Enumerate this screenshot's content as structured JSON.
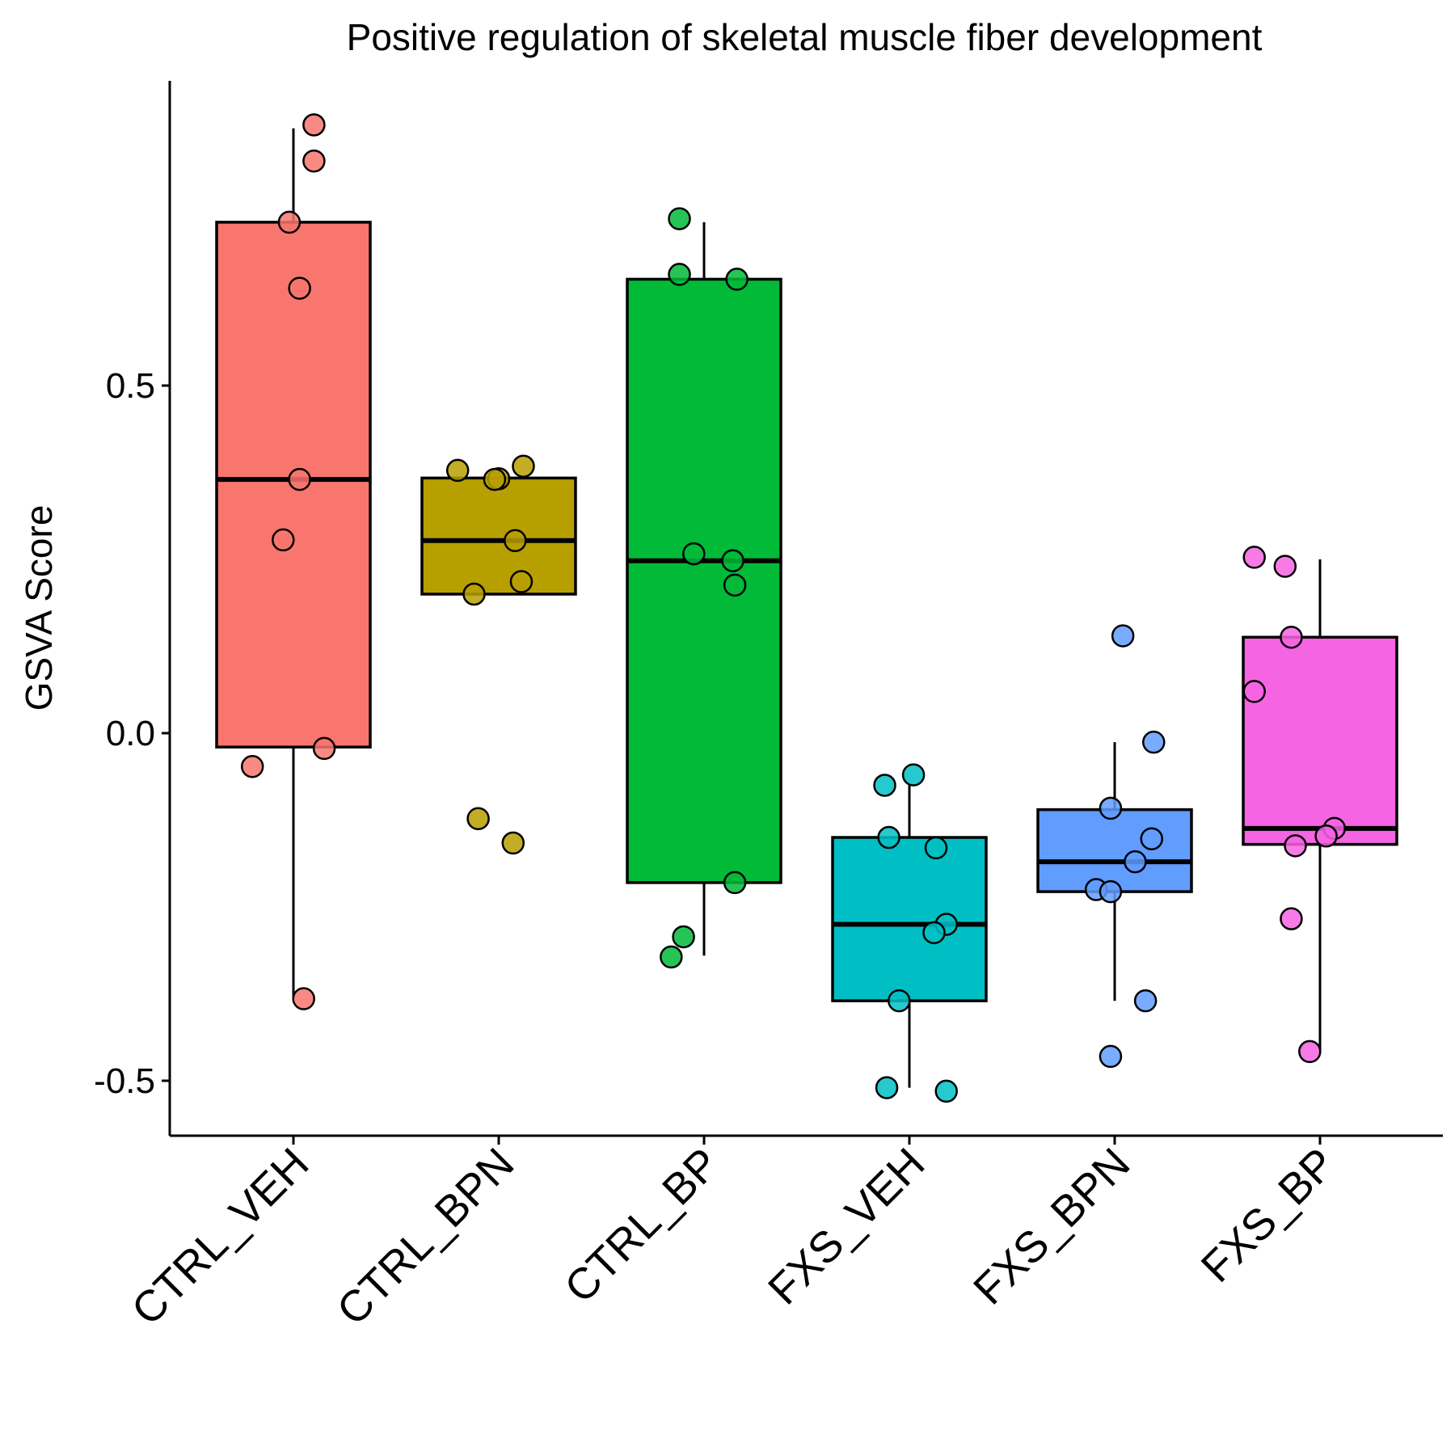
{
  "chart_data": {
    "type": "boxplot",
    "title": "Positive regulation of skeletal muscle fiber development",
    "xlabel": "",
    "ylabel": "GSVA Score",
    "ylim": [
      -0.58,
      0.94
    ],
    "yticks": [
      -0.5,
      0.0,
      0.5
    ],
    "ytick_labels": [
      "-0.5",
      "0.0",
      "0.5"
    ],
    "grid": false,
    "legend": "none",
    "categories": [
      "CTRL_VEH",
      "CTRL_BPN",
      "CTRL_BP",
      "FXS_VEH",
      "FXS_BPN",
      "FXS_BP"
    ],
    "colors": [
      "#F8766D",
      "#B79F00",
      "#00BA38",
      "#00BFC4",
      "#619CFF",
      "#F564E3"
    ],
    "boxes": [
      {
        "category": "CTRL_VEH",
        "whisker_low": -0.38,
        "q1": -0.02,
        "median": 0.365,
        "q3": 0.735,
        "whisker_high": 0.87
      },
      {
        "category": "CTRL_BPN",
        "whisker_low": 0.2,
        "q1": 0.2,
        "median": 0.277,
        "q3": 0.367,
        "whisker_high": 0.367
      },
      {
        "category": "CTRL_BP",
        "whisker_low": -0.32,
        "q1": -0.215,
        "median": 0.248,
        "q3": 0.653,
        "whisker_high": 0.735
      },
      {
        "category": "FXS_VEH",
        "whisker_low": -0.51,
        "q1": -0.385,
        "median": -0.275,
        "q3": -0.15,
        "whisker_high": -0.075
      },
      {
        "category": "FXS_BPN",
        "whisker_low": -0.385,
        "q1": -0.228,
        "median": -0.185,
        "q3": -0.11,
        "whisker_high": -0.013
      },
      {
        "category": "FXS_BP",
        "whisker_low": -0.46,
        "q1": -0.16,
        "median": -0.137,
        "q3": 0.138,
        "whisker_high": 0.25
      }
    ],
    "points": [
      {
        "category": "CTRL_VEH",
        "values": [
          0.875,
          0.823,
          0.735,
          0.64,
          0.365,
          0.278,
          -0.022,
          -0.048,
          -0.382
        ]
      },
      {
        "category": "CTRL_BPN",
        "values": [
          0.384,
          0.378,
          0.366,
          0.365,
          0.277,
          0.218,
          0.2,
          -0.123,
          -0.158
        ]
      },
      {
        "category": "CTRL_BP",
        "values": [
          0.74,
          0.66,
          0.653,
          0.258,
          0.248,
          0.213,
          -0.215,
          -0.293,
          -0.322
        ]
      },
      {
        "category": "FXS_VEH",
        "values": [
          -0.06,
          -0.075,
          -0.15,
          -0.165,
          -0.275,
          -0.287,
          -0.385,
          -0.51,
          -0.515
        ]
      },
      {
        "category": "FXS_BPN",
        "values": [
          0.14,
          -0.013,
          -0.108,
          -0.152,
          -0.185,
          -0.225,
          -0.228,
          -0.385,
          -0.465
        ]
      },
      {
        "category": "FXS_BP",
        "values": [
          0.253,
          0.24,
          0.138,
          0.06,
          -0.137,
          -0.148,
          -0.162,
          -0.267,
          -0.458
        ]
      }
    ],
    "jitter": [
      [
        0.1,
        0.1,
        -0.02,
        0.03,
        0.03,
        -0.05,
        0.15,
        -0.2,
        0.05
      ],
      [
        0.12,
        -0.2,
        0.0,
        -0.02,
        0.08,
        0.11,
        -0.12,
        -0.1,
        0.07
      ],
      [
        -0.12,
        -0.12,
        0.16,
        -0.05,
        0.14,
        0.15,
        0.15,
        -0.1,
        -0.16
      ],
      [
        0.02,
        -0.12,
        -0.1,
        0.13,
        0.18,
        0.12,
        -0.05,
        -0.11,
        0.18
      ],
      [
        0.04,
        0.19,
        -0.02,
        0.18,
        0.1,
        -0.09,
        -0.02,
        0.15,
        -0.02
      ],
      [
        -0.32,
        -0.17,
        -0.14,
        -0.32,
        0.07,
        0.03,
        -0.12,
        -0.14,
        -0.05
      ]
    ]
  }
}
